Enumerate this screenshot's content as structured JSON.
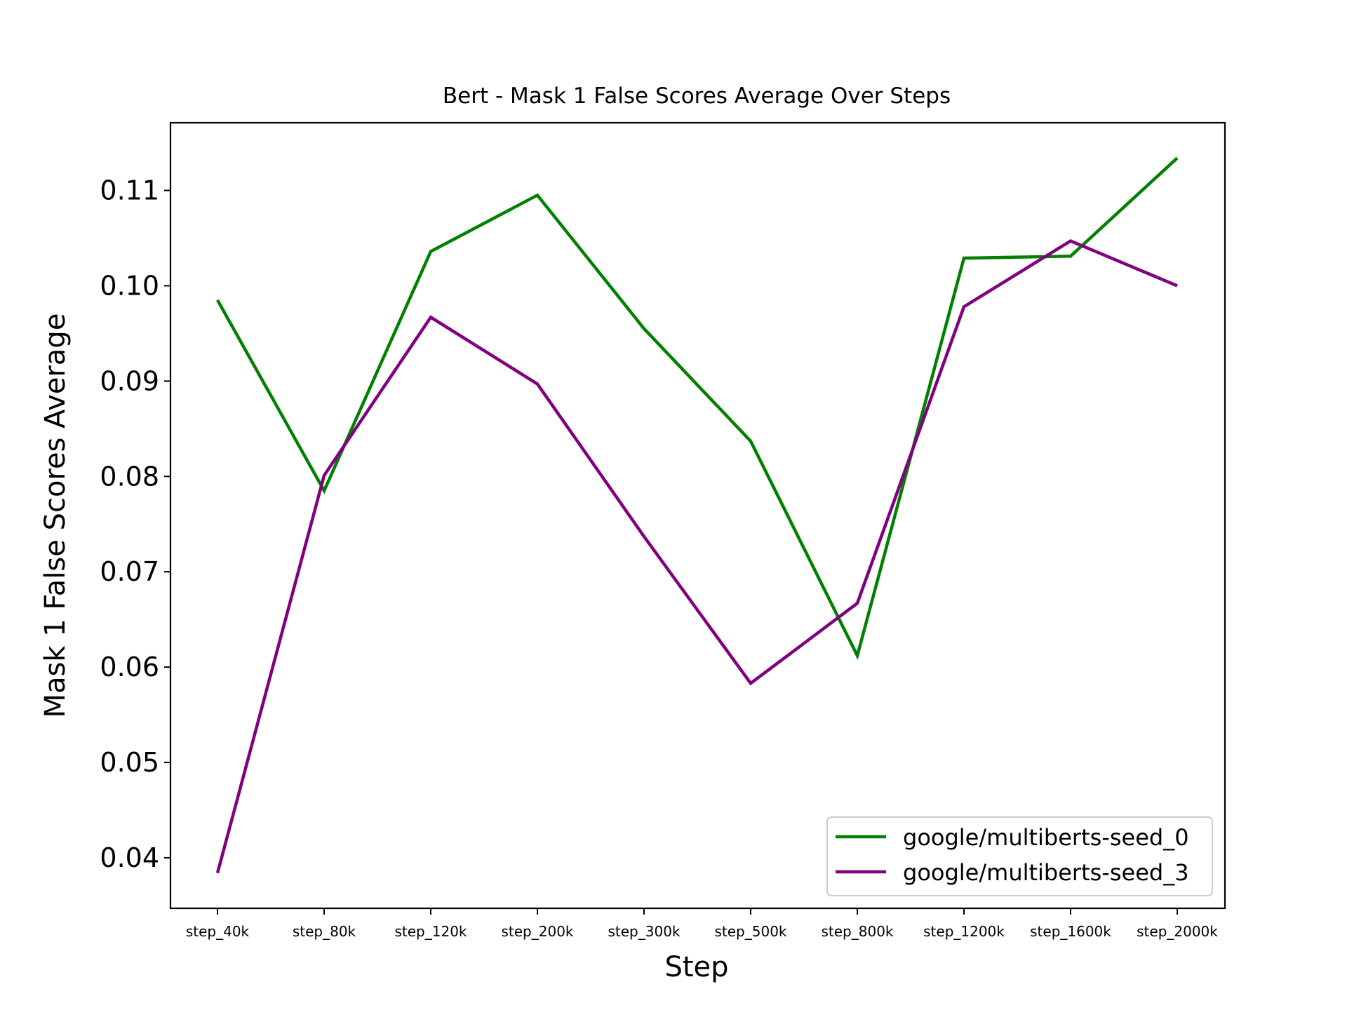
{
  "chart_data": {
    "type": "line",
    "title": "Bert - Mask 1 False Scores Average Over Steps",
    "xlabel": "Step",
    "ylabel": "Mask 1 False Scores Average",
    "categories": [
      "step_40k",
      "step_80k",
      "step_120k",
      "step_200k",
      "step_300k",
      "step_500k",
      "step_800k",
      "step_1200k",
      "step_1600k",
      "step_2000k"
    ],
    "yticks": [
      "0.04",
      "0.05",
      "0.06",
      "0.07",
      "0.08",
      "0.09",
      "0.10",
      "0.11"
    ],
    "ylim": [
      0.0347,
      0.1171
    ],
    "grid": false,
    "legend_position": "lower right",
    "series": [
      {
        "name": "google/multiberts-seed_0",
        "color": "#008000",
        "values": [
          0.0985,
          0.0785,
          0.1036,
          0.1095,
          0.0955,
          0.0837,
          0.0612,
          0.1029,
          0.1031,
          0.1134
        ]
      },
      {
        "name": "google/multiberts-seed_3",
        "color": "#800080",
        "values": [
          0.0384,
          0.0801,
          0.0967,
          0.0897,
          0.0737,
          0.0583,
          0.0667,
          0.0978,
          0.1047,
          0.1
        ]
      }
    ]
  }
}
